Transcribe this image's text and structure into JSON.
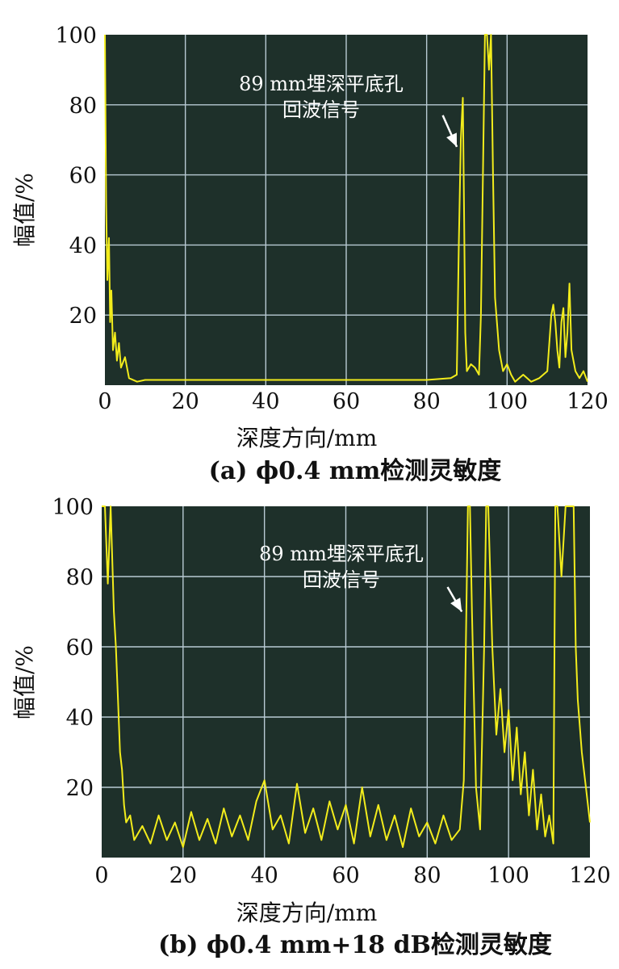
{
  "chart_data": [
    {
      "type": "line",
      "caption": "(a) ϕ0.4 mm检测灵敏度",
      "xlabel": "深度方向/mm",
      "ylabel": "幅值/%",
      "xlim": [
        0,
        120
      ],
      "ylim": [
        0,
        100
      ],
      "x_ticks": [
        "0",
        "20",
        "40",
        "60",
        "80",
        "100",
        "120"
      ],
      "y_ticks": [
        "20",
        "40",
        "60",
        "80",
        "100"
      ],
      "grid": true,
      "colors": {
        "background": "#1e302a",
        "grid": "#b8cad3",
        "line": "#f2ec1c",
        "arrow": "#ffffff"
      },
      "annotation": {
        "lines": [
          "89 mm埋深平底孔",
          "回波信号"
        ],
        "arrow_from": [
          84,
          77
        ],
        "arrow_to": [
          87.5,
          68
        ]
      },
      "series": [
        {
          "x": [
            0,
            0.3,
            0.6,
            1,
            1.3,
            1.6,
            2,
            2.5,
            3,
            3.5,
            4,
            5,
            6,
            8,
            10,
            20,
            30,
            40,
            50,
            60,
            70,
            80,
            86,
            87.5,
            88,
            88.5,
            89,
            89.3,
            89.6,
            90,
            91,
            92,
            93,
            93.5,
            94,
            94.5,
            95,
            95.5,
            96,
            96.5,
            97,
            98,
            99,
            100,
            101,
            102,
            104,
            106,
            108,
            110,
            111,
            111.5,
            112,
            112.5,
            113,
            113.5,
            114,
            114.5,
            115,
            115.5,
            116,
            117,
            118,
            119,
            120
          ],
          "y": [
            100,
            52,
            30,
            42,
            18,
            27,
            10,
            15,
            7,
            12,
            5,
            8,
            2,
            1,
            1.5,
            1.5,
            1.5,
            1.5,
            1.5,
            1.5,
            1.5,
            1.5,
            2,
            3,
            40,
            70,
            82,
            50,
            15,
            4,
            6,
            5,
            3,
            20,
            60,
            100,
            100,
            90,
            100,
            60,
            25,
            10,
            4,
            6,
            3,
            1,
            3,
            1,
            2,
            4,
            20,
            23,
            18,
            10,
            5,
            18,
            22,
            8,
            15,
            29,
            10,
            4,
            2,
            4,
            1
          ]
        }
      ]
    },
    {
      "type": "line",
      "caption": "(b) ϕ0.4 mm+18 dB检测灵敏度",
      "xlabel": "深度方向/mm",
      "ylabel": "幅值/%",
      "xlim": [
        0,
        120
      ],
      "ylim": [
        0,
        100
      ],
      "x_ticks": [
        "0",
        "20",
        "40",
        "60",
        "80",
        "100",
        "120"
      ],
      "y_ticks": [
        "20",
        "40",
        "60",
        "80",
        "100"
      ],
      "grid": true,
      "colors": {
        "background": "#1e302a",
        "grid": "#b8cad3",
        "line": "#f2ec1c",
        "arrow": "#ffffff"
      },
      "annotation": {
        "lines": [
          "89 mm埋深平底孔",
          "回波信号"
        ],
        "arrow_from": [
          85,
          77
        ],
        "arrow_to": [
          88.5,
          70
        ]
      },
      "series": [
        {
          "x": [
            0,
            0.8,
            1.5,
            2.2,
            3,
            3.5,
            4,
            4.5,
            5,
            5.5,
            6,
            7,
            8,
            10,
            12,
            14,
            16,
            18,
            20,
            22,
            24,
            26,
            28,
            30,
            32,
            34,
            36,
            38,
            40,
            42,
            44,
            46,
            48,
            50,
            52,
            54,
            56,
            58,
            60,
            62,
            64,
            66,
            68,
            70,
            72,
            74,
            76,
            78,
            80,
            82,
            84,
            86,
            88,
            89,
            89.5,
            90,
            90.5,
            91,
            92,
            93,
            94,
            94.5,
            95,
            95.5,
            96,
            97,
            98,
            99,
            100,
            101,
            102,
            103,
            104,
            105,
            106,
            107,
            108,
            109,
            110,
            111,
            111.5,
            112,
            113,
            114,
            115,
            116,
            116.5,
            117,
            118,
            119,
            120
          ],
          "y": [
            100,
            100,
            78,
            100,
            70,
            60,
            45,
            30,
            25,
            15,
            10,
            12,
            5,
            9,
            4,
            12,
            5,
            10,
            3,
            13,
            5,
            11,
            4,
            14,
            6,
            12,
            5,
            16,
            22,
            8,
            12,
            4,
            21,
            7,
            14,
            5,
            16,
            8,
            15,
            4,
            20,
            6,
            15,
            5,
            12,
            3,
            14,
            6,
            10,
            4,
            12,
            5,
            8,
            22,
            60,
            100,
            100,
            70,
            20,
            8,
            60,
            100,
            100,
            80,
            60,
            35,
            48,
            30,
            42,
            22,
            37,
            18,
            30,
            12,
            25,
            8,
            18,
            6,
            12,
            4,
            100,
            100,
            80,
            100,
            100,
            100,
            60,
            45,
            30,
            20,
            10
          ]
        }
      ]
    }
  ]
}
